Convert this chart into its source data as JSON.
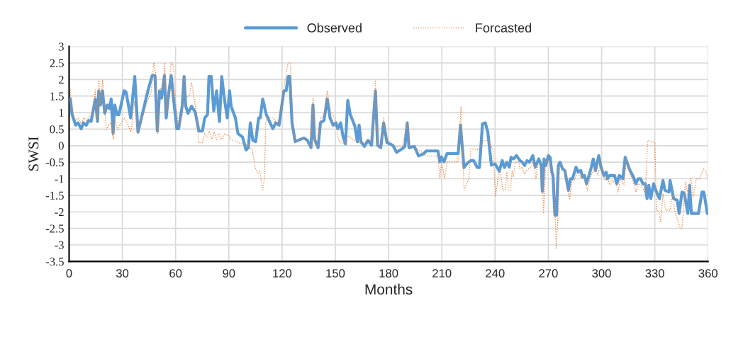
{
  "chart_data": {
    "type": "line",
    "xlabel": "Months",
    "ylabel": "SWSI",
    "xlim": [
      0,
      360
    ],
    "xticks": [
      0,
      30,
      60,
      90,
      120,
      150,
      180,
      210,
      240,
      270,
      300,
      330,
      360
    ],
    "ylim": [
      -3.5,
      3
    ],
    "yticks": [
      -3.5,
      -3,
      -2.5,
      -2,
      -1.5,
      -1,
      -0.5,
      0,
      0.5,
      1,
      1.5,
      2,
      2.5,
      3
    ],
    "grid": true,
    "legend": "top",
    "marker": "none",
    "series": [
      {
        "name": "Observed",
        "color": "#5b9bd5",
        "line_style": "solid",
        "x": [
          0.7,
          1.7,
          3.7,
          5,
          6.8,
          8.1,
          9.7,
          11,
          12.4,
          14.8,
          16,
          16.7,
          17.7,
          18.8,
          20.1,
          21.5,
          22.8,
          23.7,
          24.8,
          25.7,
          27,
          28.1,
          31,
          32.1,
          34.7,
          37,
          38.8,
          40.4,
          41.7,
          44.4,
          46.8,
          48.4,
          49.7,
          51,
          52.1,
          53.7,
          54.7,
          56.1,
          57.5,
          59,
          60.7,
          61.7,
          63.7,
          64.8,
          65.7,
          67,
          69,
          71.1,
          73.1,
          75.1,
          76.4,
          78,
          78.8,
          80.1,
          81.5,
          83.1,
          84.7,
          86,
          87.7,
          89.1,
          90.4,
          91.3,
          92.7,
          93.7,
          95.1,
          97.7,
          99.7,
          101,
          102.1,
          103.5,
          105.1,
          106.8,
          107.7,
          109.1,
          111.1,
          113.5,
          114.8,
          116.4,
          118.3,
          121,
          122.3,
          123.4,
          124.3,
          125.6,
          127.4,
          130.3,
          132.3,
          134.3,
          136.3,
          137.4,
          138.3,
          140.3,
          141.6,
          143.6,
          145.4,
          147,
          148.8,
          150.4,
          151.4,
          153,
          154.4,
          155.7,
          157,
          158.4,
          160,
          161,
          162.4,
          163.4,
          164.4,
          166.4,
          168.4,
          170.4,
          172.6,
          173.8,
          175.6,
          177.2,
          179.1,
          182.4,
          184.5,
          187.8,
          189.2,
          190.5,
          191.5,
          194.5,
          196.9,
          199.8,
          201.2,
          207.8,
          208.9,
          209.8,
          211.2,
          212.9,
          219.2,
          220.5,
          222.5,
          224.5,
          226.5,
          227.9,
          229.9,
          231.2,
          232.9,
          234.5,
          235.9,
          237.9,
          240,
          242.4,
          244,
          245.3,
          246.6,
          248,
          249,
          250.4,
          252,
          254,
          255.3,
          256.6,
          258,
          259.3,
          261.3,
          262.6,
          264.6,
          266,
          266.6,
          267.6,
          268.6,
          270,
          271,
          272,
          272.6,
          273.7,
          274.6,
          275.6,
          276.6,
          278,
          279.3,
          281.3,
          282.4,
          283.6,
          285.6,
          286.9,
          288.3,
          289.3,
          290.4,
          291.5,
          294,
          295.3,
          296.6,
          298.4,
          299.7,
          301.3,
          302.6,
          303.3,
          304.6,
          307.3,
          308.6,
          310,
          312,
          313.3,
          316,
          318,
          319.3,
          320.6,
          322,
          323.3,
          324.6,
          325.6,
          326.6,
          327.7,
          329.3,
          330.9,
          332.6,
          334.6,
          335.7,
          338,
          338.6,
          340.6,
          342.6,
          343.7,
          345.3,
          346.6,
          348.6,
          349.6,
          350.6,
          354.6,
          356.6,
          357.6,
          359.6
        ],
        "values": [
          1.41,
          0.94,
          0.62,
          0.69,
          0.51,
          0.69,
          0.62,
          0.76,
          0.73,
          1.41,
          0.73,
          1.66,
          1.23,
          1.66,
          0.98,
          1.23,
          1.12,
          1.41,
          0.37,
          1.23,
          0.94,
          0.94,
          1.66,
          1.62,
          0.84,
          2.09,
          0.41,
          0.76,
          1.05,
          1.66,
          2.12,
          2.12,
          0.44,
          1.66,
          1.44,
          2.12,
          0.84,
          1.58,
          2.12,
          1.34,
          0.51,
          0.51,
          1.19,
          2.09,
          1.19,
          0.98,
          1.19,
          1.01,
          0.44,
          0.44,
          0.84,
          0.94,
          2.09,
          2.09,
          1.05,
          1.66,
          0.73,
          2.09,
          1.34,
          0.84,
          1.66,
          1.19,
          0.98,
          0.84,
          0.37,
          0.26,
          -0.13,
          -0.06,
          0.69,
          0.16,
          0.12,
          0.84,
          0.84,
          1.41,
          0.94,
          0.66,
          0.51,
          0.69,
          0.62,
          1.66,
          1.66,
          2.09,
          2.09,
          0.69,
          0.12,
          0.19,
          0.23,
          0.16,
          -0.06,
          1.23,
          0.19,
          -0.06,
          0.69,
          0.76,
          1.41,
          0.84,
          0.62,
          0.69,
          0.51,
          0.69,
          0.26,
          0.05,
          1.37,
          0.94,
          0.73,
          0.59,
          0.12,
          0.62,
          0.12,
          -0.02,
          0.16,
          0.01,
          1.66,
          0.01,
          -0.06,
          0.69,
          0.09,
          0.01,
          -0.2,
          -0.09,
          -0.02,
          0.69,
          -0.06,
          -0.02,
          -0.31,
          -0.24,
          -0.16,
          -0.16,
          -0.49,
          -0.34,
          -0.49,
          -0.24,
          -0.24,
          0.62,
          -0.66,
          -0.52,
          -0.45,
          -0.45,
          -0.66,
          -0.66,
          0.66,
          0.69,
          0.41,
          -0.59,
          -0.55,
          -0.77,
          -0.45,
          -0.66,
          -0.5,
          -0.65,
          -0.35,
          -0.4,
          -0.3,
          -0.45,
          -0.5,
          -0.6,
          -0.45,
          -0.5,
          -0.3,
          -0.65,
          -0.4,
          -0.6,
          -1.38,
          -0.4,
          -0.6,
          -0.3,
          -0.35,
          -0.8,
          -0.9,
          -2.1,
          -2.1,
          -0.6,
          -0.5,
          -0.7,
          -0.75,
          -1.35,
          -1.0,
          -1.0,
          -0.65,
          -0.8,
          -0.75,
          -0.95,
          -0.9,
          -1.15,
          -0.7,
          -0.4,
          -0.75,
          -0.3,
          -0.65,
          -0.9,
          -0.8,
          -1.0,
          -0.9,
          -0.9,
          -1.15,
          -0.9,
          -1.0,
          -0.35,
          -0.75,
          -0.95,
          -1.15,
          -1.0,
          -1.0,
          -1.15,
          -1.15,
          -1.6,
          -1.2,
          -1.6,
          -1.15,
          -1.4,
          -1.6,
          -1.05,
          -1.35,
          -1.4,
          -1.05,
          -1.6,
          -1.65,
          -2.05,
          -1.4,
          -1.45,
          -2.05,
          -1.2,
          -2.05,
          -2.05,
          -1.4,
          -1.4,
          -2.05
        ]
      },
      {
        "name": "Forcasted",
        "color": "#ed7d31",
        "line_style": "dotted",
        "x": [
          0.7,
          1.7,
          3.7,
          5,
          6.8,
          8.4,
          10,
          11.3,
          13,
          14.7,
          15.7,
          16.8,
          17.7,
          18.8,
          21,
          22.4,
          23.7,
          24.8,
          25.7,
          27.3,
          31,
          32.3,
          34.9,
          36.7,
          38.8,
          41,
          44.4,
          46.4,
          47.7,
          48.7,
          50,
          51.7,
          53,
          53.9,
          55,
          56.6,
          57.5,
          58.8,
          60.1,
          61.7,
          63.7,
          64.8,
          66,
          67.7,
          69,
          71.1,
          73.1,
          75.1,
          76.4,
          77.7,
          79.1,
          80.4,
          81.7,
          83.1,
          84.4,
          85.7,
          87.7,
          89.7,
          91.1,
          94.4,
          97.7,
          101,
          101.7,
          103,
          105.1,
          106.4,
          107.4,
          109.1,
          110.1,
          110.8,
          112.4,
          115,
          117,
          118.3,
          121,
          123.4,
          124.7,
          126,
          127.4,
          130.3,
          132.3,
          134.3,
          136.3,
          137.4,
          138.6,
          140.3,
          141.6,
          143.6,
          145.4,
          147.7,
          149.7,
          151.7,
          155,
          157,
          162.4,
          167.7,
          171,
          172.6,
          173.8,
          175.9,
          177.2,
          179.1,
          183.7,
          187.8,
          190.5,
          191.8,
          197.1,
          201.2,
          207.8,
          208.9,
          209.8,
          211.6,
          212.9,
          219.2,
          220.8,
          222.5,
          225.2,
          226.3,
          230.5,
          233.8,
          235.9,
          238.8,
          240.3,
          242,
          243,
          244.4,
          245.6,
          246.6,
          247.6,
          248.6,
          249.6,
          250.3,
          251.3,
          253.3,
          254,
          255.3,
          256.4,
          257.7,
          259,
          260.4,
          261.7,
          263,
          264,
          265.3,
          266.6,
          267.3,
          268.6,
          270.6,
          272,
          273.3,
          274.4,
          275.6,
          276.3,
          277.3,
          279.3,
          280.6,
          282,
          283.3,
          284.6,
          286.6,
          288,
          289.3,
          290.6,
          292,
          294,
          296,
          298,
          299.3,
          300.6,
          302,
          303.3,
          304.6,
          306,
          308,
          309.3,
          310.6,
          312.6,
          314,
          316,
          317.3,
          319.3,
          320.6,
          322.6,
          324.6,
          326,
          330,
          331,
          332.4,
          333.3,
          334.6,
          336,
          338.6,
          340,
          341.3,
          344.4,
          345.3,
          347.3,
          348.6,
          350.3,
          351.6,
          353.3,
          355.3,
          357.3,
          358.6,
          360
        ],
        "values": [
          1.69,
          1.05,
          0.76,
          0.84,
          0.66,
          0.84,
          0.76,
          0.87,
          0.98,
          1.69,
          0.76,
          1.98,
          1.19,
          1.98,
          0.48,
          0.62,
          0.69,
          0.19,
          0.8,
          0.48,
          0.84,
          0.73,
          0.41,
          1.34,
          0.37,
          0.84,
          1.37,
          1.66,
          2.51,
          2.19,
          0.37,
          1.73,
          1.66,
          2.51,
          0.98,
          2.01,
          2.51,
          2.41,
          1.3,
          0.51,
          0.98,
          2.09,
          1.48,
          1.51,
          1.91,
          1.19,
          0.09,
          0.09,
          0.37,
          0.26,
          0.44,
          0.19,
          0.41,
          0.19,
          0.37,
          0.19,
          0.37,
          0.3,
          0.19,
          0.12,
          0.05,
          0.01,
          -0.09,
          -0.09,
          -0.7,
          -0.81,
          -0.77,
          -1.34,
          -0.95,
          0.76,
          0.84,
          0.84,
          0.66,
          0.84,
          1.76,
          2.51,
          2.48,
          0.69,
          0.12,
          0.19,
          0.23,
          0.16,
          -0.06,
          1.44,
          0.05,
          -0.06,
          0.84,
          0.91,
          1.66,
          0.98,
          0.84,
          0.16,
          0.05,
          0.3,
          0.09,
          0.12,
          0.19,
          1.98,
          -0.02,
          -0.06,
          0.84,
          0.19,
          -0.02,
          -0.02,
          0.69,
          -0.02,
          -0.13,
          -0.31,
          -0.31,
          -0.99,
          -0.52,
          -0.99,
          -0.49,
          -0.49,
          1.19,
          -1.34,
          -0.99,
          -0.09,
          -0.13,
          0.16,
          0.16,
          -0.13,
          -1.55,
          -0.8,
          -0.8,
          -1.35,
          -1.35,
          -0.8,
          -1.35,
          -1.35,
          -0.75,
          -0.95,
          -0.5,
          -0.5,
          -0.7,
          -0.65,
          -0.85,
          -0.75,
          -0.7,
          -0.65,
          -0.45,
          -1.0,
          -0.6,
          -0.6,
          -0.75,
          -2.05,
          -0.45,
          -0.45,
          -0.85,
          -0.85,
          -3.1,
          -2.0,
          -0.6,
          -0.6,
          -0.75,
          -1.3,
          -1.6,
          -1.05,
          -1.05,
          -0.8,
          -0.95,
          -0.9,
          -1.05,
          -1.35,
          -0.9,
          -0.7,
          -0.9,
          -0.4,
          -0.85,
          -1.05,
          -0.95,
          -1.2,
          -1.05,
          -1.15,
          -1.4,
          -1.0,
          -1.2,
          -0.4,
          -0.85,
          -1.0,
          -1.4,
          -1.15,
          -1.2,
          -1.45,
          0.15,
          0.1,
          -1.95,
          -2.0,
          -2.3,
          -1.45,
          -1.95,
          -1.95,
          -1.45,
          -2.0,
          -2.5,
          -2.5,
          -1.1,
          -1.45,
          -0.95,
          -1.55,
          -1.0,
          -1.0,
          -0.7,
          -0.75,
          -1.0
        ]
      }
    ]
  }
}
